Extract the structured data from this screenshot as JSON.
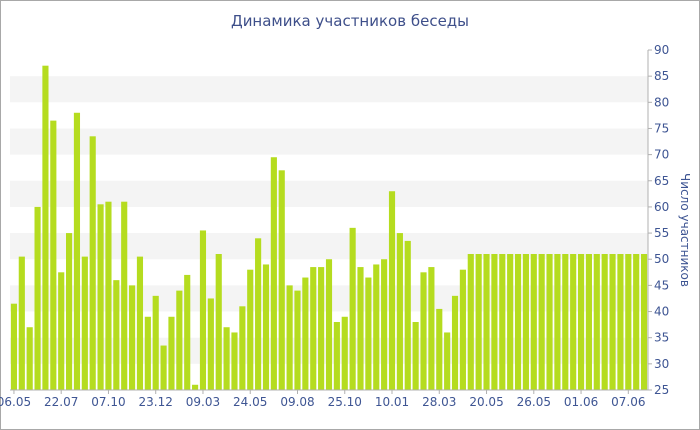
{
  "chart_data": {
    "type": "bar",
    "title": "Динамика участников беседы",
    "xlabel": "",
    "ylabel": "Число участников",
    "ylim": [
      25,
      90
    ],
    "y_ticks": [
      25,
      30,
      35,
      40,
      45,
      50,
      55,
      60,
      65,
      70,
      75,
      80,
      85,
      90
    ],
    "y_axis_position": "right",
    "grid": "alternating horizontal bands",
    "bar_color": "#b5dc1f",
    "band_color": "#f4f4f4",
    "axis_label_color": "#3e5593",
    "x_tick_labels": [
      {
        "label": "06.05",
        "index": 0
      },
      {
        "label": "22.07",
        "index": 6
      },
      {
        "label": "07.10",
        "index": 12
      },
      {
        "label": "23.12",
        "index": 18
      },
      {
        "label": "09.03",
        "index": 24
      },
      {
        "label": "24.05",
        "index": 30
      },
      {
        "label": "09.08",
        "index": 36
      },
      {
        "label": "25.10",
        "index": 42
      },
      {
        "label": "10.01",
        "index": 48
      },
      {
        "label": "28.03",
        "index": 54
      },
      {
        "label": "20.05",
        "index": 60
      },
      {
        "label": "26.05",
        "index": 66
      },
      {
        "label": "01.06",
        "index": 72
      },
      {
        "label": "07.06",
        "index": 78
      }
    ],
    "values": [
      41.5,
      50.5,
      37,
      60,
      87,
      76.5,
      47.5,
      55,
      78,
      50.5,
      73.5,
      60.5,
      61,
      46,
      61,
      45,
      50.5,
      39,
      43,
      33.5,
      39,
      44,
      47,
      26,
      55.5,
      42.5,
      51,
      37,
      36,
      41,
      48,
      54,
      49,
      69.5,
      67,
      45,
      44,
      46.5,
      48.5,
      48.5,
      50,
      38,
      39,
      56,
      48.5,
      46.5,
      49,
      50,
      63,
      55,
      53.5,
      38,
      47.5,
      48.5,
      40.5,
      36,
      43,
      48,
      51,
      51,
      51,
      51,
      51,
      51,
      51,
      51,
      51,
      51,
      51,
      51,
      51,
      51,
      51,
      51,
      51,
      51,
      51,
      51,
      51,
      51,
      51
    ]
  }
}
